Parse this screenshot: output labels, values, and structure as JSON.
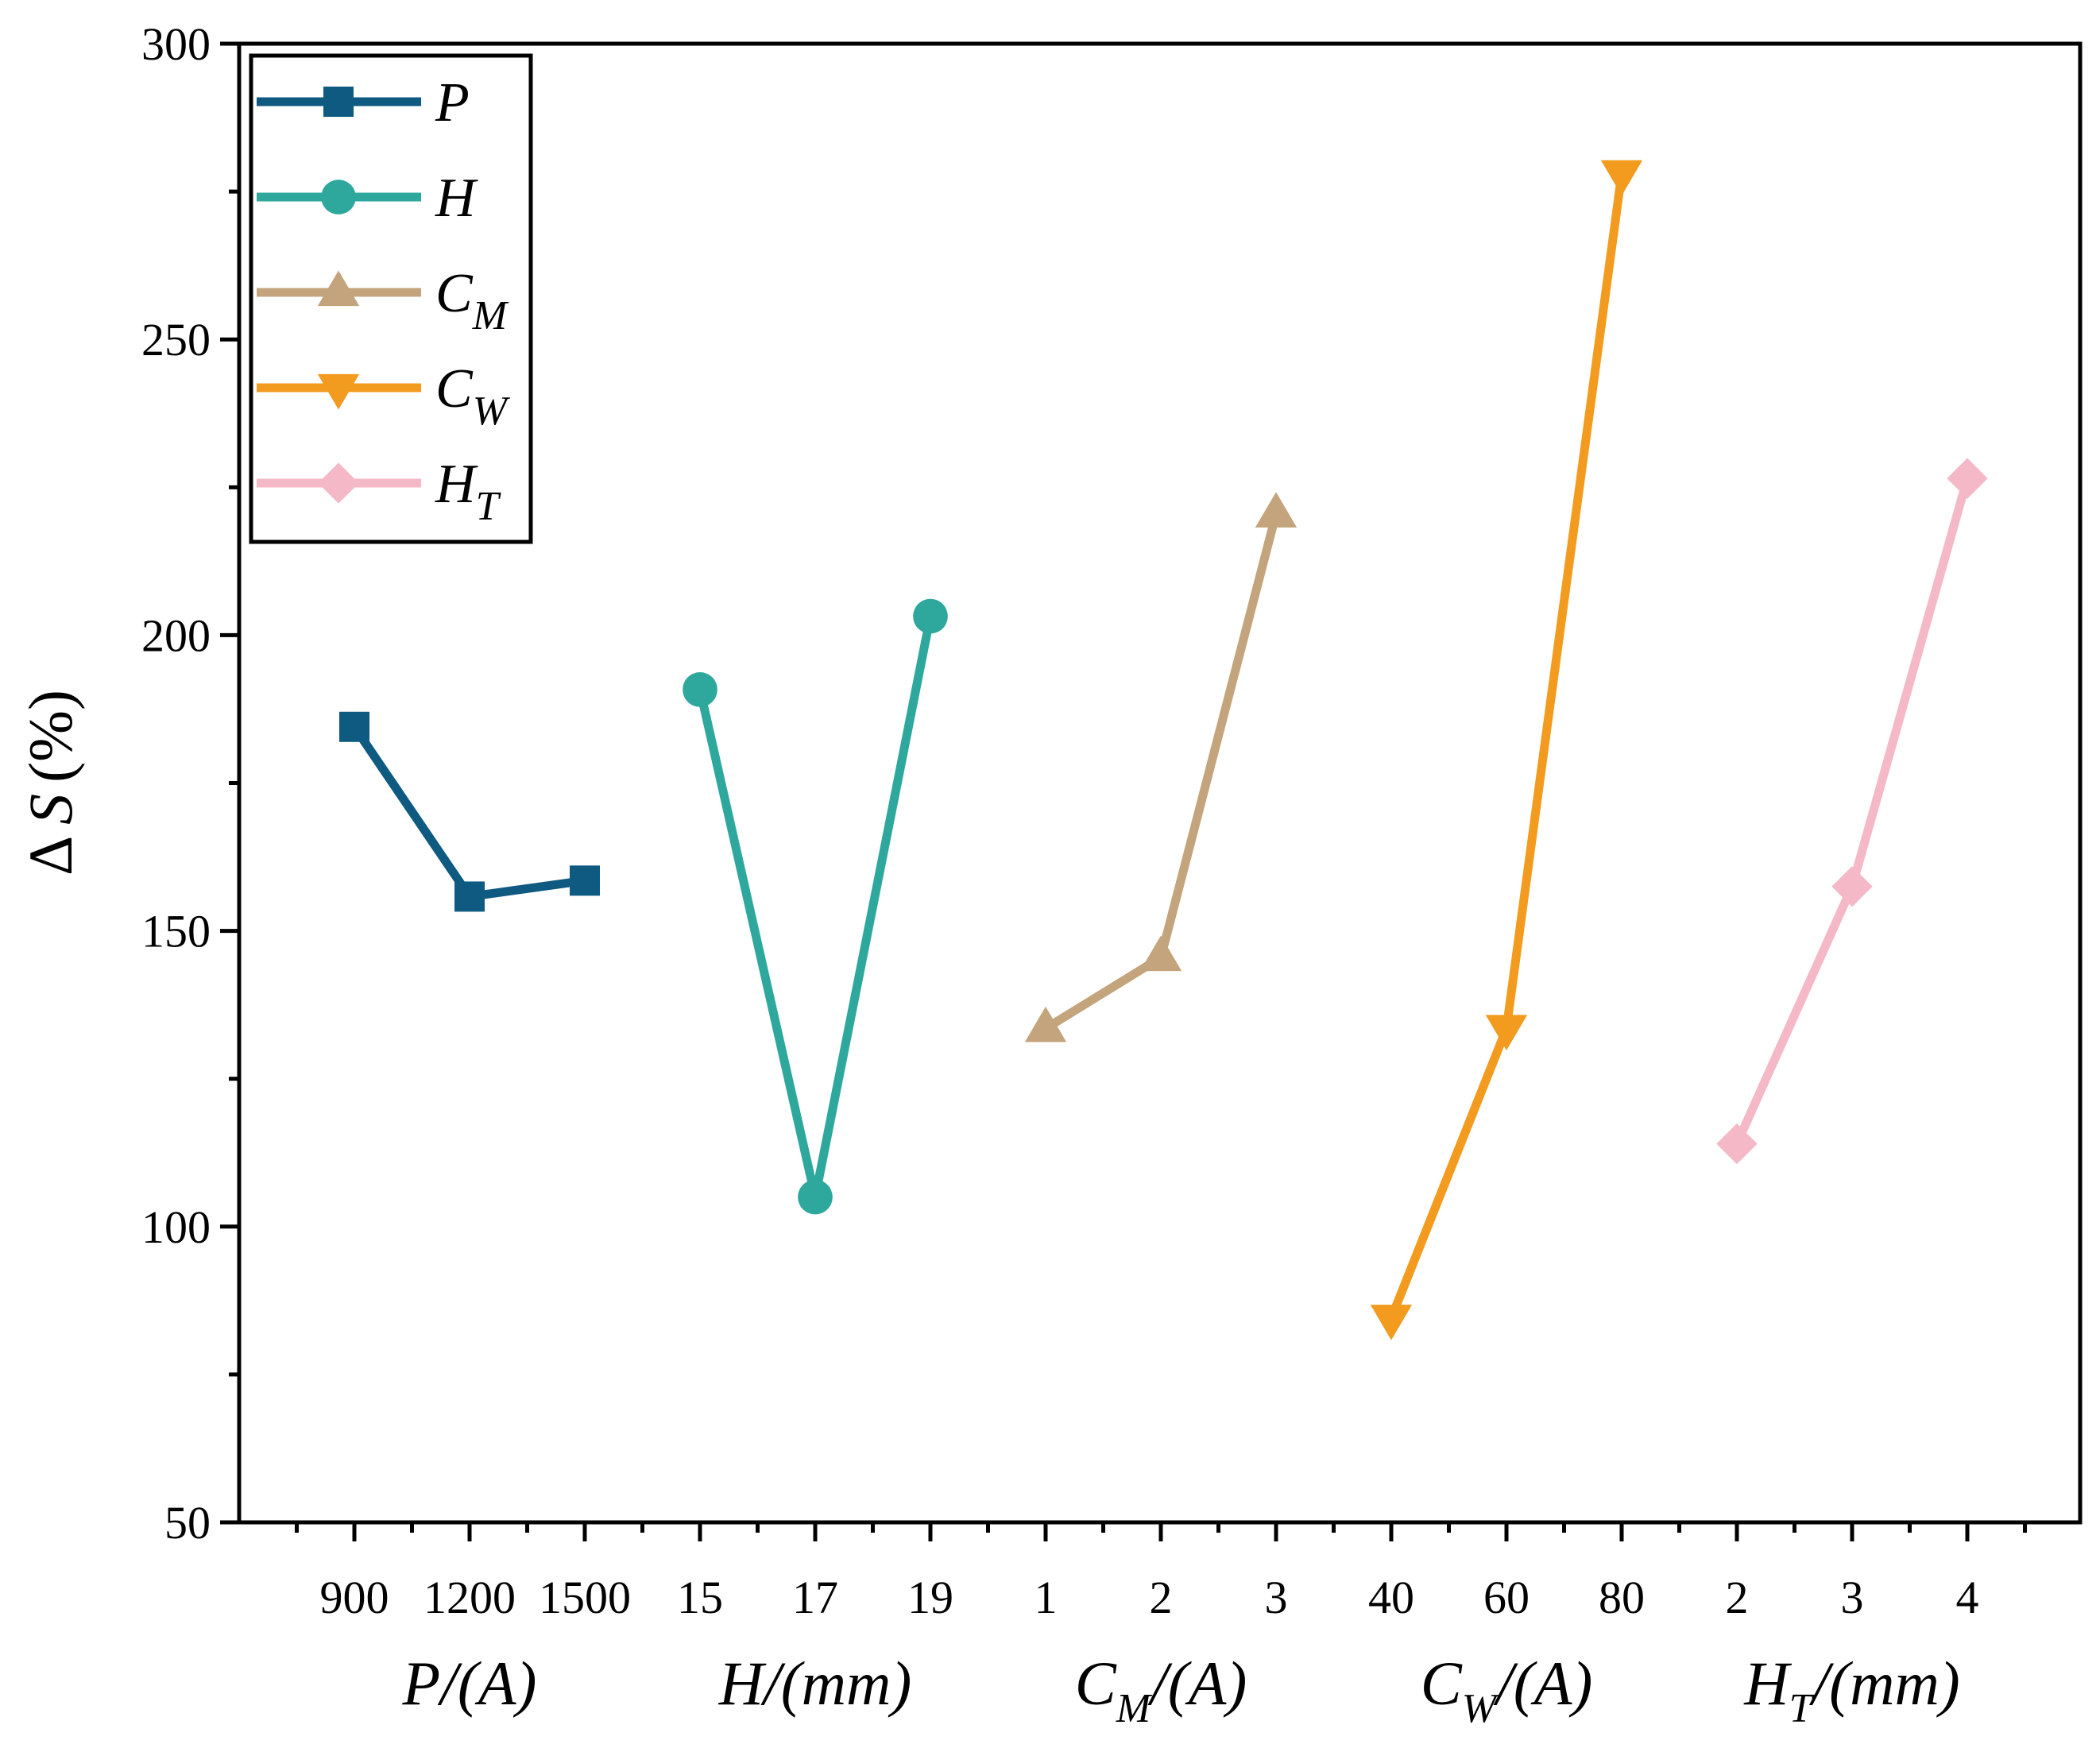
{
  "chart_data": {
    "type": "line",
    "title": "",
    "ylabel_symbol": "Δ",
    "ylabel_var": "S",
    "ylabel_unit": "(%)",
    "ylim": [
      50,
      300
    ],
    "yticks": [
      50,
      100,
      150,
      200,
      250,
      300
    ],
    "yticks_minor": [
      75,
      125,
      175,
      225,
      275
    ],
    "x_positions": [
      "900",
      "1200",
      "1500",
      "15",
      "17",
      "19",
      "1",
      "2",
      "3",
      "40",
      "60",
      "80",
      "2",
      "3",
      "4"
    ],
    "groups": [
      {
        "base": "P",
        "sub": "",
        "unit": "/(A)"
      },
      {
        "base": "H",
        "sub": "",
        "unit": "/(mm)"
      },
      {
        "base": "C",
        "sub": "M",
        "unit": "/(A)"
      },
      {
        "base": "C",
        "sub": "W",
        "unit": "/(A)"
      },
      {
        "base": "H",
        "sub": "T",
        "unit": "/(mm)"
      }
    ],
    "series": [
      {
        "name": "P",
        "sub": "",
        "marker": "square",
        "color": "#0e5a80",
        "categories": [
          "900",
          "1200",
          "1500"
        ],
        "values": [
          184.5,
          155.8,
          158.5
        ]
      },
      {
        "name": "H",
        "sub": "",
        "marker": "circle",
        "color": "#2ea89c",
        "categories": [
          "15",
          "17",
          "19"
        ],
        "values": [
          190.8,
          105.0,
          203.2
        ]
      },
      {
        "name": "C",
        "sub": "M",
        "marker": "triangle-up",
        "color": "#c3a47c",
        "categories": [
          "1",
          "2",
          "3"
        ],
        "values": [
          133.5,
          145.5,
          220.5
        ]
      },
      {
        "name": "C",
        "sub": "W",
        "marker": "triangle-down",
        "color": "#f39b1f",
        "categories": [
          "40",
          "60",
          "80"
        ],
        "values": [
          84.5,
          133.5,
          278.0
        ]
      },
      {
        "name": "H",
        "sub": "T",
        "marker": "diamond",
        "color": "#f4b8c6",
        "categories": [
          "2",
          "3",
          "4"
        ],
        "values": [
          114.0,
          157.5,
          226.5
        ]
      }
    ],
    "legend": "top-left"
  }
}
